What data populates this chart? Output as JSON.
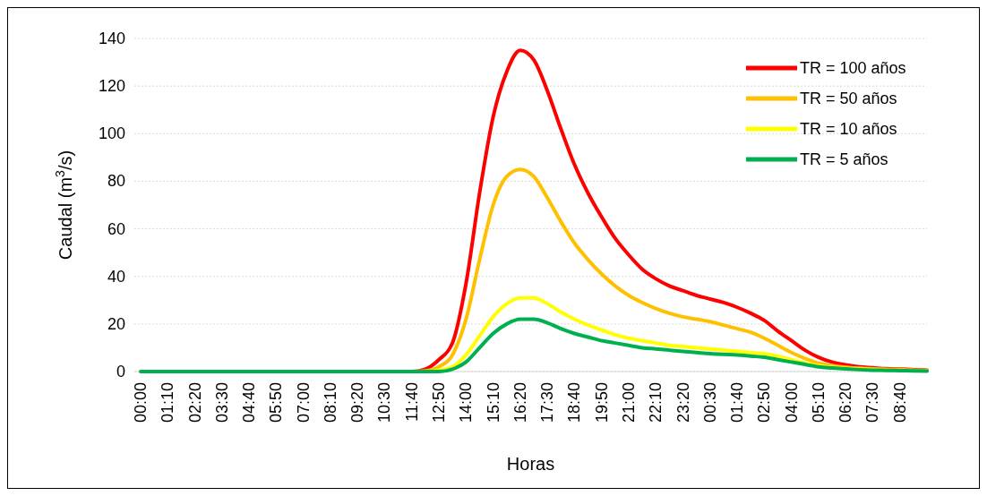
{
  "chart_data": {
    "type": "line",
    "xlabel": "Horas",
    "ylabel": "Caudal (m$^{3}$/s)",
    "categories": [
      "00:00",
      null,
      "01:10",
      null,
      "02:20",
      null,
      "03:30",
      null,
      "04:40",
      null,
      "05:50",
      null,
      "07:00",
      null,
      "08:10",
      null,
      "09:20",
      null,
      "10:30",
      null,
      "11:40",
      null,
      "12:50",
      null,
      "14:00",
      null,
      "15:10",
      null,
      "16:20",
      null,
      "17:30",
      null,
      "18:40",
      null,
      "19:50",
      null,
      "21:00",
      null,
      "22:10",
      null,
      "23:20",
      null,
      "00:30",
      null,
      "01:40",
      null,
      "02:50",
      null,
      "04:00",
      null,
      "05:10",
      null,
      "06:20",
      null,
      "07:30",
      null,
      "08:40",
      null,
      null
    ],
    "series": [
      {
        "name": "TR = 100 años",
        "color": "#ff0000",
        "values": [
          null,
          null,
          null,
          null,
          null,
          null,
          null,
          null,
          null,
          null,
          null,
          null,
          null,
          null,
          null,
          null,
          null,
          null,
          null,
          0,
          0,
          1,
          5,
          12,
          37,
          75,
          107,
          126,
          135,
          131,
          118,
          102,
          87,
          75,
          65,
          56,
          49,
          43,
          39,
          36,
          34,
          32,
          30.5,
          29,
          27,
          24.5,
          21.5,
          17,
          13,
          9,
          6,
          4,
          2.8,
          2,
          1.6,
          1.2,
          1,
          0.8,
          0.6
        ]
      },
      {
        "name": "TR = 50 años",
        "color": "#ffc000",
        "values": [
          null,
          null,
          null,
          null,
          null,
          null,
          null,
          null,
          null,
          null,
          null,
          null,
          null,
          null,
          null,
          null,
          null,
          null,
          null,
          null,
          0,
          0.3,
          2,
          7,
          22,
          47,
          70,
          82,
          85,
          82,
          73,
          63,
          54,
          47,
          41,
          36,
          32,
          29,
          26.5,
          24.5,
          23,
          22,
          21,
          19.5,
          18,
          16.5,
          14,
          11,
          8,
          5.5,
          3.5,
          2.5,
          1.8,
          1.4,
          1.1,
          0.9,
          0.8,
          0.6,
          0.5
        ]
      },
      {
        "name": "TR = 10 años",
        "color": "#ffff00",
        "values": [
          null,
          null,
          null,
          null,
          null,
          null,
          null,
          null,
          null,
          null,
          null,
          null,
          null,
          null,
          null,
          null,
          null,
          null,
          null,
          null,
          0,
          0,
          0.5,
          2,
          7,
          15,
          23,
          28.5,
          31,
          31,
          28.5,
          25,
          22,
          19.5,
          17.5,
          15.5,
          14,
          13,
          12,
          11,
          10.5,
          10,
          9.5,
          9,
          8.5,
          8,
          7.5,
          6.5,
          5,
          3.5,
          2.5,
          1.8,
          1.3,
          1,
          0.8,
          0.6,
          null,
          null,
          null
        ]
      },
      {
        "name": "TR = 5 años",
        "color": "#00b050",
        "values": [
          0,
          0,
          0,
          0,
          0,
          0,
          0,
          0,
          0,
          0,
          0,
          0,
          0,
          0,
          0,
          0,
          0,
          0,
          0,
          0,
          0,
          0,
          0,
          1,
          4,
          10,
          16,
          20,
          22,
          22,
          20.5,
          18,
          16,
          14.5,
          13,
          12,
          11,
          10,
          9.5,
          9,
          8.5,
          8,
          7.5,
          7.2,
          7,
          6.5,
          6,
          5,
          4,
          3,
          2,
          1.5,
          1.1,
          0.8,
          0.6,
          0.5,
          0.4,
          0.3,
          0.2
        ]
      }
    ],
    "ylim": [
      0,
      140
    ],
    "yticks": [
      0,
      20,
      40,
      60,
      80,
      100,
      120,
      140
    ],
    "grid": "y",
    "legend": "top right",
    "line_style": "solid"
  }
}
